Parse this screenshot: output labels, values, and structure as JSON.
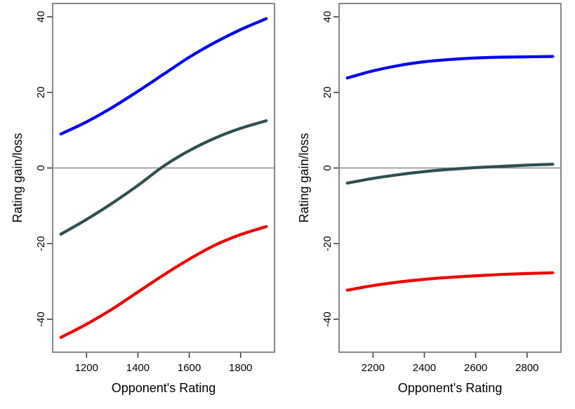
{
  "figure": {
    "background": "#ffffff",
    "frame_color": "#7a7a7a",
    "tick_color": "#3c3c3c",
    "zero_line_color": "#808080",
    "text_color": "#000000"
  },
  "chart_data": [
    {
      "type": "line",
      "panel": "left",
      "title": "",
      "xlabel": "Opponent's Rating",
      "ylabel": "Rating gain/loss",
      "xlim": [
        1068,
        1932
      ],
      "ylim": [
        -48.7,
        43.5
      ],
      "xticks": [
        1200,
        1400,
        1600,
        1800
      ],
      "yticks": [
        -40,
        -20,
        0,
        20,
        40
      ],
      "grid": false,
      "zero_line": true,
      "legend": "none",
      "x": [
        1100,
        1200,
        1300,
        1400,
        1500,
        1600,
        1700,
        1800,
        1900
      ],
      "series": [
        {
          "name": "blue-line",
          "color": "#0000ee",
          "values": [
            9.0,
            12.2,
            16.0,
            20.3,
            24.8,
            29.3,
            33.2,
            36.6,
            39.5
          ]
        },
        {
          "name": "dark-line",
          "color": "#2f4f4f",
          "values": [
            -17.5,
            -13.6,
            -9.3,
            -4.6,
            0.5,
            4.6,
            7.9,
            10.5,
            12.5
          ]
        },
        {
          "name": "red-line",
          "color": "#ee0000",
          "values": [
            -44.8,
            -41.3,
            -37.3,
            -32.8,
            -28.3,
            -24.1,
            -20.4,
            -17.6,
            -15.5
          ]
        }
      ]
    },
    {
      "type": "line",
      "panel": "right",
      "title": "",
      "xlabel": "Opponent's Rating",
      "ylabel": "Rating gain/loss",
      "xlim": [
        2068,
        2932
      ],
      "ylim": [
        -48.7,
        43.5
      ],
      "xticks": [
        2200,
        2400,
        2600,
        2800
      ],
      "yticks": [
        -40,
        -20,
        0,
        20,
        40
      ],
      "grid": false,
      "zero_line": true,
      "legend": "none",
      "x": [
        2100,
        2200,
        2300,
        2400,
        2500,
        2600,
        2700,
        2800,
        2900
      ],
      "series": [
        {
          "name": "blue-line",
          "color": "#0000ee",
          "values": [
            23.8,
            25.7,
            27.1,
            28.1,
            28.7,
            29.1,
            29.3,
            29.4,
            29.5
          ]
        },
        {
          "name": "dark-line",
          "color": "#2f4f4f",
          "values": [
            -4.0,
            -2.75,
            -1.75,
            -0.95,
            -0.35,
            0.1,
            0.45,
            0.75,
            1.0
          ]
        },
        {
          "name": "red-line",
          "color": "#ee0000",
          "values": [
            -32.3,
            -31.1,
            -30.15,
            -29.45,
            -28.9,
            -28.5,
            -28.15,
            -27.9,
            -27.7
          ]
        }
      ]
    }
  ]
}
